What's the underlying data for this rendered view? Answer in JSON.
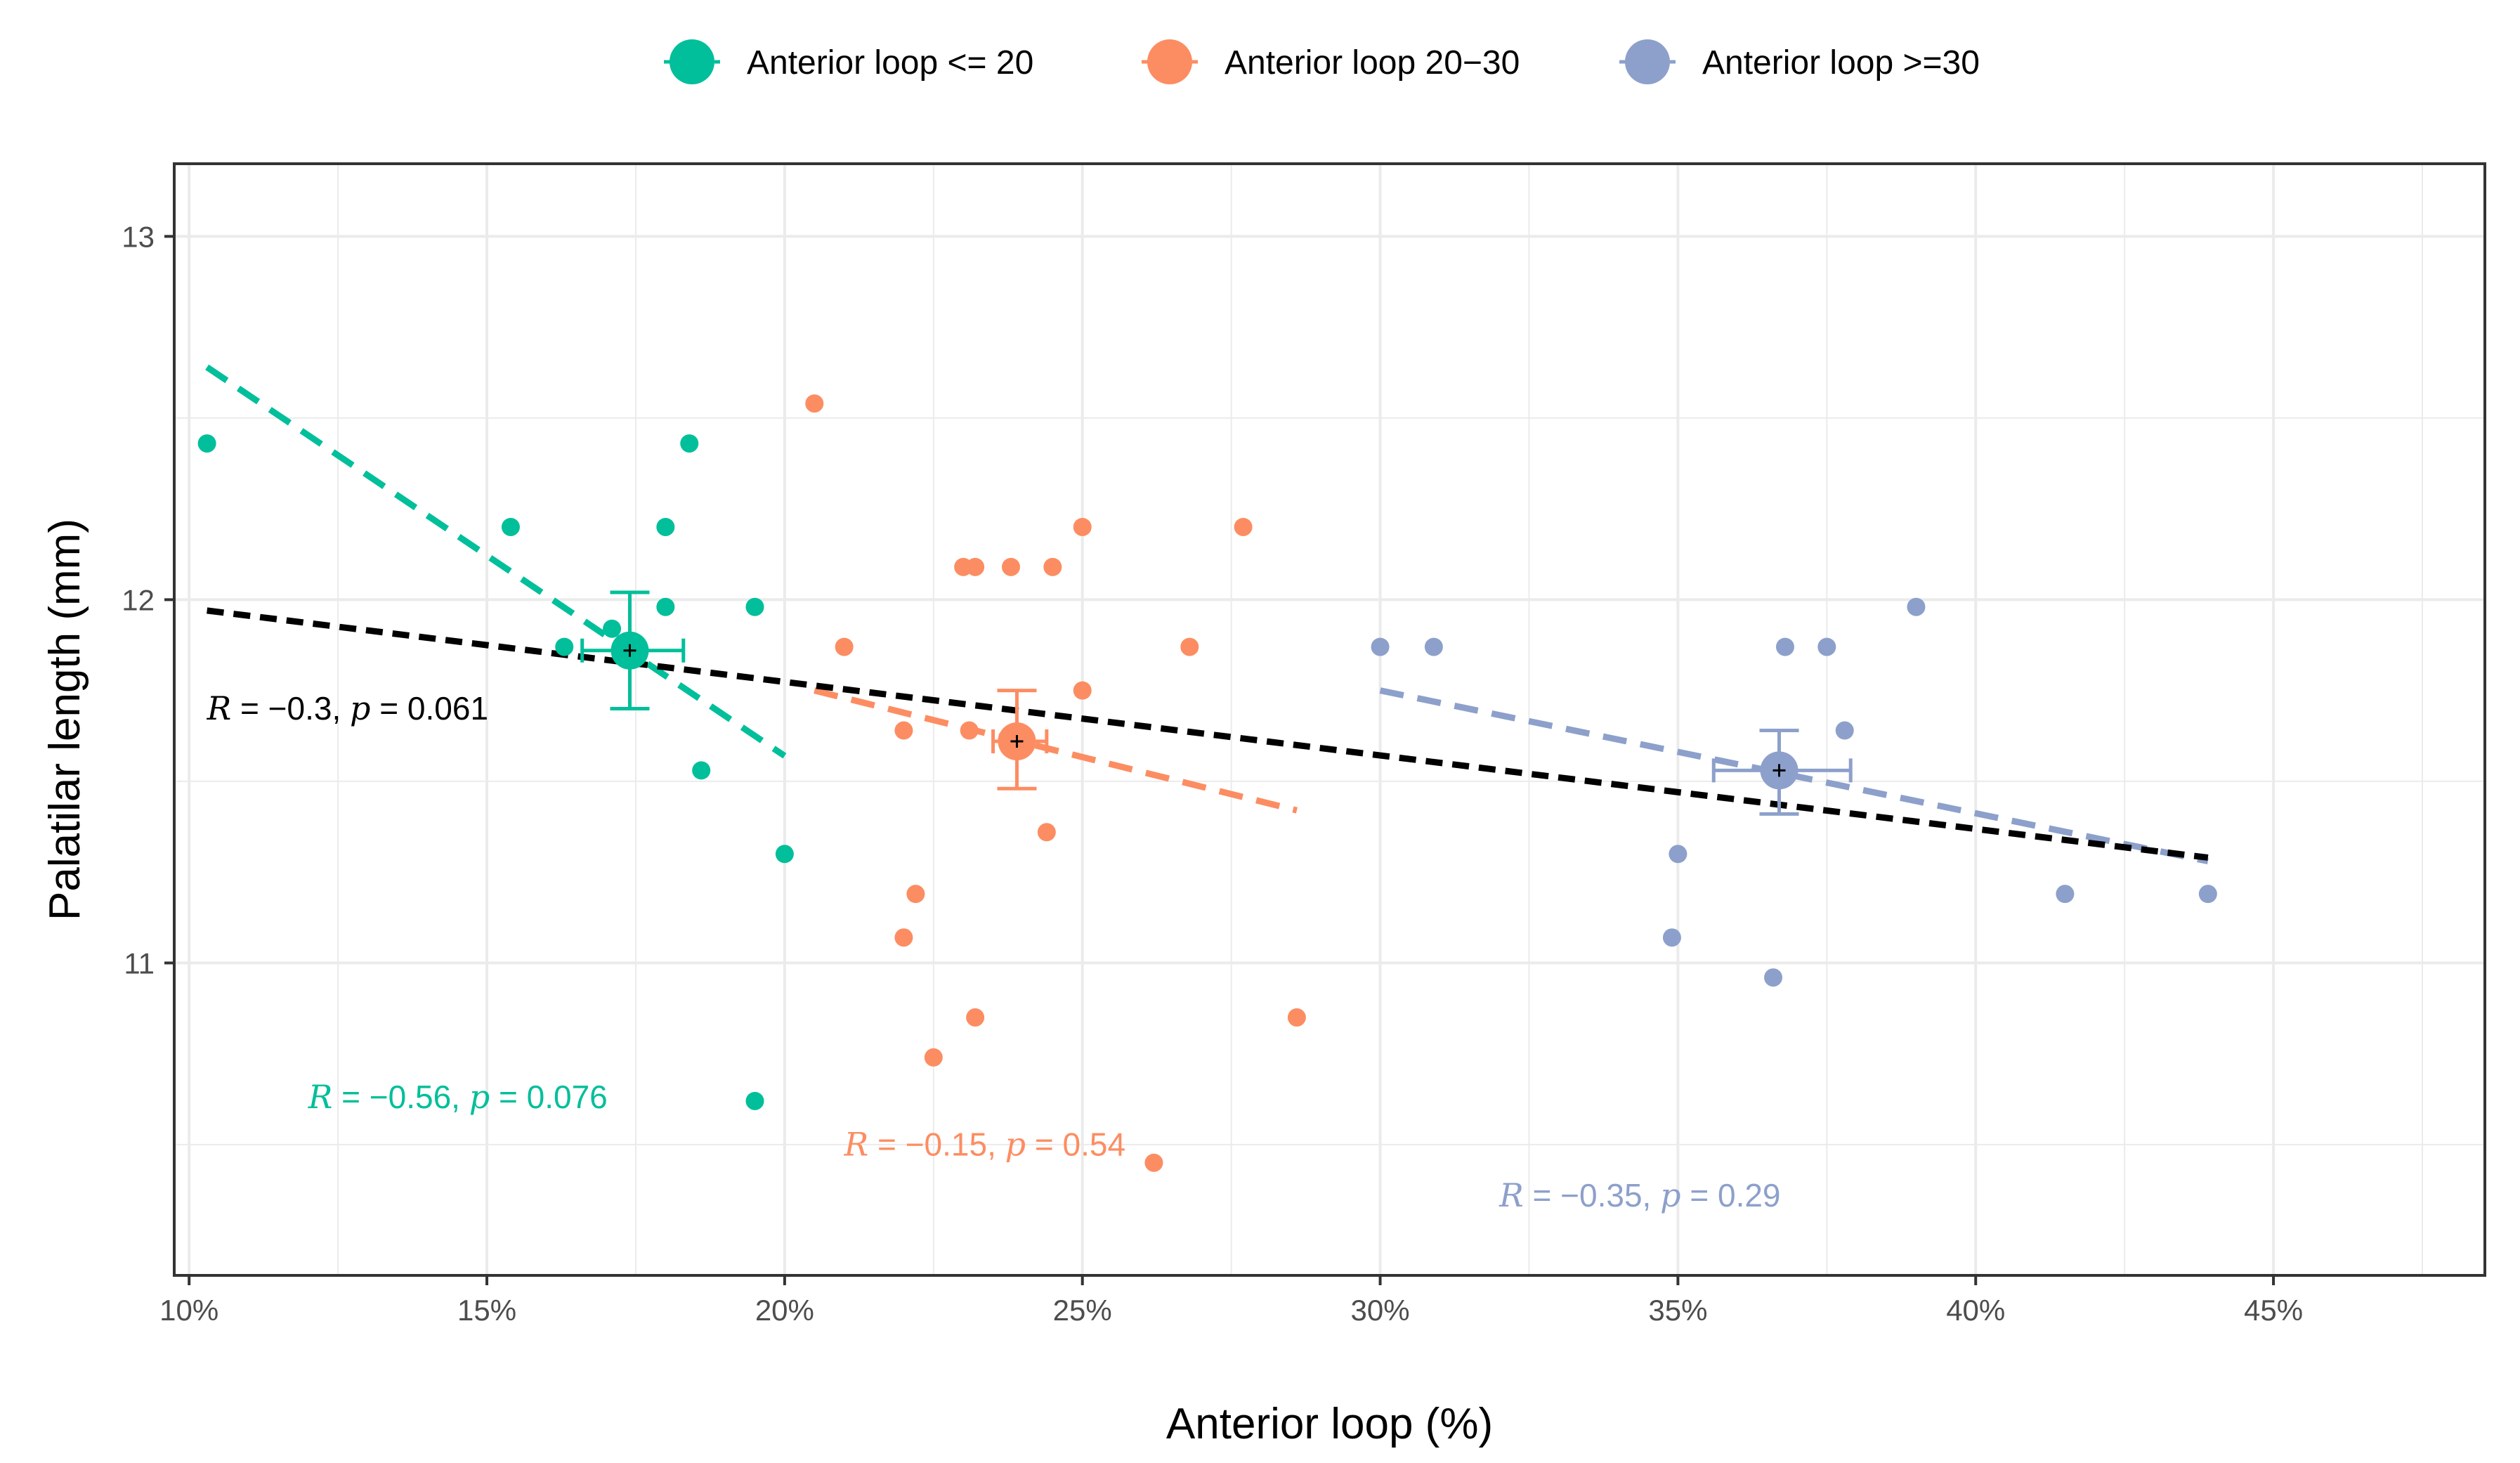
{
  "chart_data": {
    "type": "scatter",
    "title": "",
    "xlabel": "Anterior loop (%)",
    "ylabel": "Palatilar length (mm)",
    "xlim": [
      0.0975,
      0.4855
    ],
    "ylim": [
      10.14,
      13.2
    ],
    "x_ticks": [
      0.1,
      0.15,
      0.2,
      0.25,
      0.3,
      0.35,
      0.4,
      0.45
    ],
    "x_tick_labels": [
      "10%",
      "15%",
      "20%",
      "25%",
      "30%",
      "35%",
      "40%",
      "45%"
    ],
    "y_ticks": [
      11,
      12,
      13
    ],
    "y_tick_labels": [
      "11",
      "12",
      "13"
    ],
    "grid": true,
    "legend_position": "top",
    "series": [
      {
        "name": "Anterior loop <= 20",
        "color": "#00BF9A",
        "points": [
          {
            "x": 0.103,
            "y": 12.43
          },
          {
            "x": 0.154,
            "y": 12.2
          },
          {
            "x": 0.163,
            "y": 11.87
          },
          {
            "x": 0.171,
            "y": 11.92
          },
          {
            "x": 0.18,
            "y": 12.2
          },
          {
            "x": 0.18,
            "y": 11.98
          },
          {
            "x": 0.184,
            "y": 12.43
          },
          {
            "x": 0.186,
            "y": 11.53
          },
          {
            "x": 0.195,
            "y": 11.98
          },
          {
            "x": 0.195,
            "y": 10.62
          },
          {
            "x": 0.2,
            "y": 11.3
          }
        ],
        "mean": {
          "x": 0.174,
          "y": 11.86,
          "x_err": [
            0.166,
            0.183
          ],
          "y_err": [
            11.7,
            12.02
          ]
        },
        "trend": {
          "x": [
            0.103,
            0.2
          ],
          "y": [
            12.64,
            11.57
          ]
        },
        "annotation": {
          "r_label": "R",
          "r_value": " = −0.56, ",
          "p_label": "p",
          "p_value": " = 0.076",
          "x": 0.12,
          "y": 10.6
        }
      },
      {
        "name": "Anterior loop 20−30",
        "color": "#FC8D62",
        "points": [
          {
            "x": 0.205,
            "y": 12.54
          },
          {
            "x": 0.21,
            "y": 11.87
          },
          {
            "x": 0.22,
            "y": 11.64
          },
          {
            "x": 0.22,
            "y": 11.07
          },
          {
            "x": 0.222,
            "y": 11.19
          },
          {
            "x": 0.225,
            "y": 10.74
          },
          {
            "x": 0.23,
            "y": 12.09
          },
          {
            "x": 0.231,
            "y": 11.64
          },
          {
            "x": 0.232,
            "y": 12.09
          },
          {
            "x": 0.232,
            "y": 10.85
          },
          {
            "x": 0.238,
            "y": 12.09
          },
          {
            "x": 0.244,
            "y": 11.36
          },
          {
            "x": 0.245,
            "y": 12.09
          },
          {
            "x": 0.25,
            "y": 12.2
          },
          {
            "x": 0.25,
            "y": 11.75
          },
          {
            "x": 0.262,
            "y": 10.45
          },
          {
            "x": 0.268,
            "y": 11.87
          },
          {
            "x": 0.277,
            "y": 12.2
          },
          {
            "x": 0.286,
            "y": 10.85
          }
        ],
        "mean": {
          "x": 0.239,
          "y": 11.61,
          "x_err": [
            0.235,
            0.244
          ],
          "y_err": [
            11.48,
            11.75
          ]
        },
        "trend": {
          "x": [
            0.205,
            0.286
          ],
          "y": [
            11.75,
            11.42
          ]
        },
        "annotation": {
          "r_label": "R",
          "r_value": " = −0.15, ",
          "p_label": "p",
          "p_value": " = 0.54",
          "x": 0.21,
          "y": 10.47
        }
      },
      {
        "name": "Anterior loop >=30",
        "color": "#8DA0CB",
        "points": [
          {
            "x": 0.3,
            "y": 11.87
          },
          {
            "x": 0.309,
            "y": 11.87
          },
          {
            "x": 0.349,
            "y": 11.07
          },
          {
            "x": 0.35,
            "y": 11.3
          },
          {
            "x": 0.366,
            "y": 10.96
          },
          {
            "x": 0.368,
            "y": 11.87
          },
          {
            "x": 0.375,
            "y": 11.87
          },
          {
            "x": 0.378,
            "y": 11.64
          },
          {
            "x": 0.39,
            "y": 11.98
          },
          {
            "x": 0.415,
            "y": 11.19
          },
          {
            "x": 0.439,
            "y": 11.19
          }
        ],
        "mean": {
          "x": 0.367,
          "y": 11.53,
          "x_err": [
            0.356,
            0.379
          ],
          "y_err": [
            11.41,
            11.64
          ]
        },
        "trend": {
          "x": [
            0.3,
            0.439
          ],
          "y": [
            11.75,
            11.28
          ]
        },
        "annotation": {
          "r_label": "R",
          "r_value": " = −0.35, ",
          "p_label": "p",
          "p_value": " = 0.29",
          "x": 0.32,
          "y": 10.33
        }
      }
    ],
    "overall": {
      "color": "#000000",
      "trend": {
        "x": [
          0.103,
          0.439
        ],
        "y": [
          11.97,
          11.29
        ]
      },
      "annotation": {
        "r_label": "R",
        "r_value": " = −0.3, ",
        "p_label": "p",
        "p_value": " = 0.061",
        "x": 0.103,
        "y": 11.67
      }
    }
  }
}
